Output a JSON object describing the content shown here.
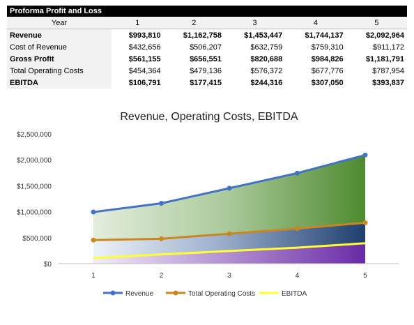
{
  "table": {
    "title": "Proforma Profit and Loss",
    "header_label": "Year",
    "years": [
      "1",
      "2",
      "3",
      "4",
      "5"
    ],
    "rows": [
      {
        "label": "Revenue",
        "bold": true,
        "values": [
          "$993,810",
          "$1,162,758",
          "$1,453,447",
          "$1,744,137",
          "$2,092,964"
        ]
      },
      {
        "label": "Cost of Revenue",
        "bold": false,
        "values": [
          "$432,656",
          "$506,207",
          "$632,759",
          "$759,310",
          "$911,172"
        ]
      },
      {
        "label": "Gross Profit",
        "bold": true,
        "values": [
          "$561,155",
          "$656,551",
          "$820,688",
          "$984,826",
          "$1,181,791"
        ]
      },
      {
        "label": "Total Operating Costs",
        "bold": false,
        "values": [
          "$454,364",
          "$479,136",
          "$576,372",
          "$677,776",
          "$787,954"
        ]
      },
      {
        "label": "EBITDA",
        "bold": true,
        "values": [
          "$106,791",
          "$177,415",
          "$244,316",
          "$307,050",
          "$393,837"
        ]
      }
    ]
  },
  "chart_data": {
    "type": "area",
    "title": "Revenue, Operating Costs, EBITDA",
    "categories": [
      "1",
      "2",
      "3",
      "4",
      "5"
    ],
    "ylim": [
      0,
      2500000
    ],
    "yticks": [
      0,
      500000,
      1000000,
      1500000,
      2000000,
      2500000
    ],
    "ytick_labels": [
      "$0",
      "$500,000",
      "$1,000,000",
      "$1,500,000",
      "$2,000,000",
      "$2,500,000"
    ],
    "legend_position": "bottom",
    "grid": false,
    "series": [
      {
        "name": "Revenue",
        "values": [
          993810,
          1162758,
          1453447,
          1744137,
          2092964
        ],
        "color": "#4472c4",
        "marker": true
      },
      {
        "name": "Total Operating Costs",
        "values": [
          454364,
          479136,
          576372,
          677776,
          787954
        ],
        "color": "#c9871f",
        "marker": true
      },
      {
        "name": "EBITDA",
        "values": [
          106791,
          177415,
          244316,
          307050,
          393837
        ],
        "color": "#ffff33",
        "marker": false
      }
    ]
  }
}
